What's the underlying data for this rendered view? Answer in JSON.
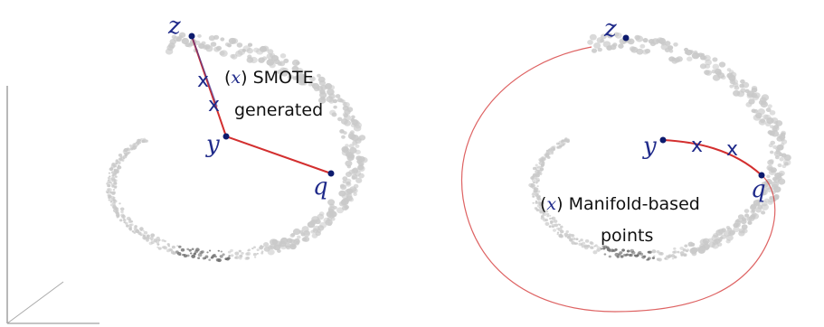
{
  "left_panel": {
    "points": {
      "z": "z",
      "y": "y",
      "q": "q"
    },
    "annotation": {
      "paren_open": "(",
      "var": "x",
      "paren_close": ")",
      "line1_rest": " SMOTE",
      "line2": "generated"
    },
    "cross_glyph": "x"
  },
  "right_panel": {
    "points": {
      "z": "z",
      "y": "y",
      "q": "q"
    },
    "annotation": {
      "paren_open": "(",
      "var": "x",
      "paren_close": ")",
      "line1_rest": " Manifold-based",
      "line2": "points"
    },
    "cross_glyph": "x"
  },
  "colors": {
    "point_marker": "#0d1b6e",
    "path_line": "#d32f2f",
    "label": "#1f2a8a",
    "manifold_light": "#c9c9c9",
    "manifold_dark": "#555555"
  }
}
